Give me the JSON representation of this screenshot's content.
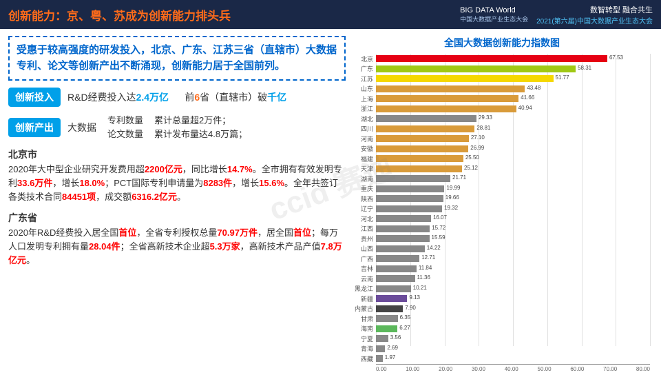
{
  "header": {
    "title": "创新能力：京、粤、苏成为创新能力排头兵",
    "logo": "BIG DATA World",
    "logo_sub": "中国大数据产业生态大会",
    "sub1": "数智转型 融合共生",
    "sub2": "2021(第六届)中国大数据产业生态大会"
  },
  "intro": "受惠于较高强度的研发投入，北京、广东、江苏三省（直辖市）大数据专利、论文等创新产出不断涌现，创新能力居于全国前列。",
  "row1": {
    "tag": "创新投入",
    "t1": "R&D经费投入达",
    "v1": "2.4万亿",
    "t2": "前",
    "v2": "6",
    "t3": "省（直辖市）破",
    "v3": "千亿"
  },
  "row2": {
    "tag": "创新产出",
    "left": "大数据",
    "l1": "专利数量",
    "r1": "累计总量超2万件；",
    "l2": "论文数量",
    "r2": "累计发布量达4.8万篇；"
  },
  "beijing": {
    "title": "北京市",
    "body": "2020年大中型企业研究开发费用超<span class='hl'>2200亿元</span>，同比增长<span class='hl'>14.7%</span>。全市拥有有效发明专利<span class='hl'>33.6万件</span>，增长<span class='hl'>18.0%</span>；PCT国际专利申请量为<span class='hl'>8283件</span>，增长<span class='hl'>15.6%</span>。全年共签订各类技术合同<span class='hl'>84451项</span>，成交额<span class='hl'>6316.2亿元</span>。"
  },
  "guangdong": {
    "title": "广东省",
    "body": "2020年R&D经费投入居全国<span class='hl'>首位</span>，全省专利授权总量<span class='hl'>70.97万件</span>，居全国<span class='hl'>首位</span>；每万人口发明专利拥有量<span class='hl'>28.04件</span>；全省高新技术企业超<span class='hl'>5.3万家</span>，高新技术产品产值<span class='hl'>7.8万亿元</span>。"
  },
  "chart": {
    "title": "全国大数据创新能力指数图",
    "xmax": 80,
    "ticks": [
      "0.00",
      "10.00",
      "20.00",
      "30.00",
      "40.00",
      "50.00",
      "60.00",
      "70.00",
      "80.00"
    ],
    "bars": [
      {
        "l": "北京",
        "v": 67.53,
        "c": "#e60012"
      },
      {
        "l": "广东",
        "v": 58.31,
        "c": "#a0c814"
      },
      {
        "l": "江苏",
        "v": 51.77,
        "c": "#f5d800"
      },
      {
        "l": "山东",
        "v": 43.48,
        "c": "#d99b3a"
      },
      {
        "l": "上海",
        "v": 41.66,
        "c": "#d99b3a"
      },
      {
        "l": "浙江",
        "v": 40.94,
        "c": "#d99b3a"
      },
      {
        "l": "湖北",
        "v": 29.33,
        "c": "#888"
      },
      {
        "l": "四川",
        "v": 28.81,
        "c": "#d99b3a"
      },
      {
        "l": "河南",
        "v": 27.1,
        "c": "#d99b3a"
      },
      {
        "l": "安徽",
        "v": 26.99,
        "c": "#d99b3a"
      },
      {
        "l": "福建",
        "v": 25.5,
        "c": "#d99b3a"
      },
      {
        "l": "天津",
        "v": 25.12,
        "c": "#d99b3a"
      },
      {
        "l": "湖南",
        "v": 21.71,
        "c": "#888"
      },
      {
        "l": "重庆",
        "v": 19.99,
        "c": "#888"
      },
      {
        "l": "陕西",
        "v": 19.66,
        "c": "#888"
      },
      {
        "l": "辽宁",
        "v": 19.32,
        "c": "#888"
      },
      {
        "l": "河北",
        "v": 16.07,
        "c": "#888"
      },
      {
        "l": "江西",
        "v": 15.72,
        "c": "#888"
      },
      {
        "l": "贵州",
        "v": 15.59,
        "c": "#888"
      },
      {
        "l": "山西",
        "v": 14.22,
        "c": "#888"
      },
      {
        "l": "广西",
        "v": 12.71,
        "c": "#888"
      },
      {
        "l": "吉林",
        "v": 11.84,
        "c": "#888"
      },
      {
        "l": "云南",
        "v": 11.36,
        "c": "#888"
      },
      {
        "l": "黑龙江",
        "v": 10.21,
        "c": "#888"
      },
      {
        "l": "新疆",
        "v": 9.13,
        "c": "#6b4c9a"
      },
      {
        "l": "内蒙古",
        "v": 7.9,
        "c": "#444"
      },
      {
        "l": "甘肃",
        "v": 6.35,
        "c": "#888"
      },
      {
        "l": "海南",
        "v": 6.27,
        "c": "#5cb85c"
      },
      {
        "l": "宁夏",
        "v": 3.56,
        "c": "#888"
      },
      {
        "l": "青海",
        "v": 2.69,
        "c": "#888"
      },
      {
        "l": "西藏",
        "v": 1.97,
        "c": "#888"
      }
    ]
  },
  "watermark": "ccid 赛迪"
}
